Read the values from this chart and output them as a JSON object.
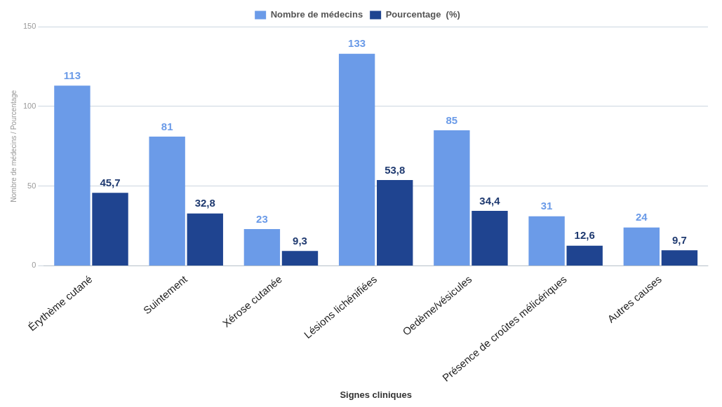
{
  "chart_data": {
    "type": "bar",
    "xlabel": "Signes cliniques",
    "ylabel": "Nombre de médecins / Pourcentage",
    "categories": [
      "Érythème cutané",
      "Suintement",
      "Xérose cutanée",
      "Lésions lichénifiées",
      "Oedème/vésicules",
      "Présence de croûtes mélicériques",
      "Autres causes"
    ],
    "series": [
      {
        "name": "Nombre de médecins",
        "color": "#6b9be8",
        "values": [
          113,
          81,
          23,
          133,
          85,
          31,
          24
        ],
        "value_labels": [
          "113",
          "81",
          "23",
          "133",
          "85",
          "31",
          "24"
        ]
      },
      {
        "name": "Pourcentage  (%)",
        "color": "#1f4490",
        "values": [
          45.7,
          32.8,
          9.3,
          53.8,
          34.4,
          12.6,
          9.7
        ],
        "value_labels": [
          "45,7",
          "32,8",
          "9,3",
          "53,8",
          "34,4",
          "12,6",
          "9,7"
        ]
      }
    ],
    "ylim": [
      0,
      150
    ],
    "yticks": [
      0,
      50,
      100,
      150
    ],
    "grid": "y",
    "legend": "top"
  }
}
